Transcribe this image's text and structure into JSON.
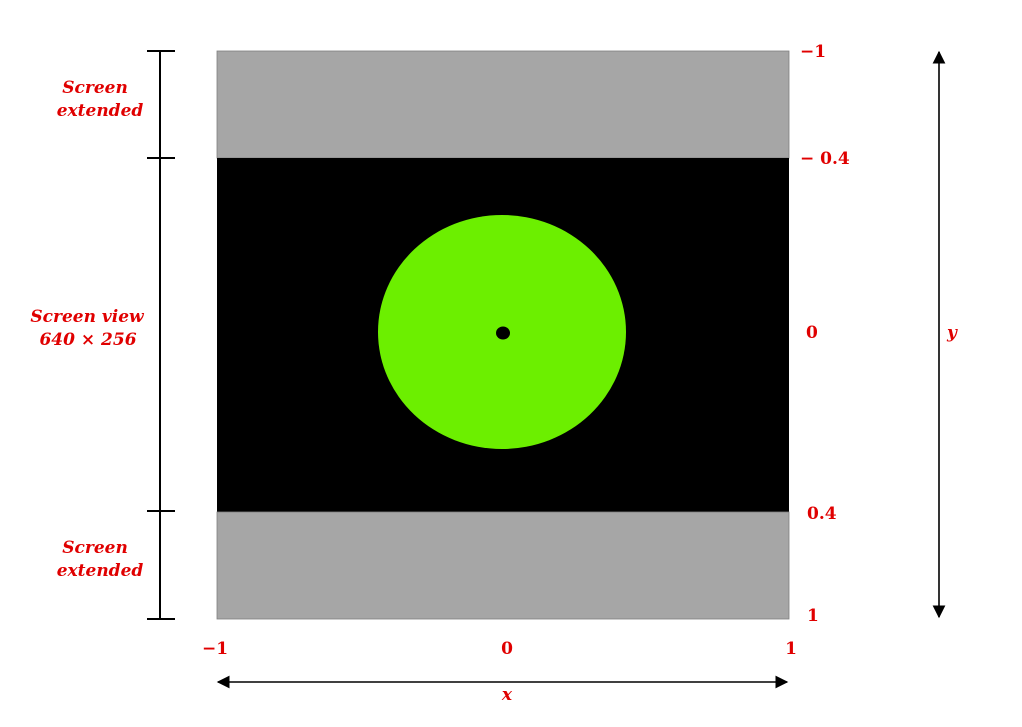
{
  "diagram": {
    "screen_extended_top": {
      "line1": "Screen",
      "line2": "extended"
    },
    "screen_view": {
      "line1": "Screen view",
      "line2": "640 × 256"
    },
    "screen_extended_bottom": {
      "line1": "Screen",
      "line2": "extended"
    },
    "y_ticks": {
      "top": "−1",
      "upper": "− 0.4",
      "middle": "0",
      "lower": "0.4",
      "bottom": "1"
    },
    "x_ticks": {
      "left": "−1",
      "middle": "0",
      "right": "1"
    },
    "x_axis_label": "x",
    "y_axis_label": "y"
  },
  "colors": {
    "extended_region": "#a6a6a6",
    "screen_view_region": "#000000",
    "circle": "#6cef00",
    "center_dot": "#000000",
    "label_text": "#e00000",
    "lines": "#000000"
  }
}
